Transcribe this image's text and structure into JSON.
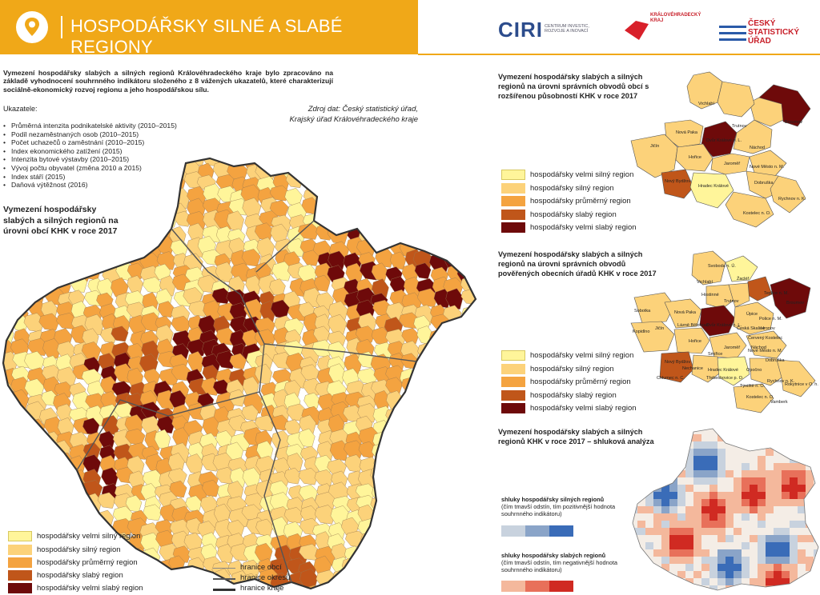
{
  "header": {
    "title": "HOSPODÁŘSKY SILNÉ A SLABÉ REGIONY",
    "ciri_name": "CIRI",
    "ciri_sub": "CENTRUM INVESTIC, ROZVOJE A INOVACÍ",
    "khk_text": "KRÁLOVÉHRADECKÝ KRAJ",
    "csu_line1": "ČESKÝ",
    "csu_line2": "STATISTICKÝ",
    "csu_line3": "ÚŘAD"
  },
  "intro": "Vymezení hospodářsky slabých a silných regionů Královéhradeckého kraje bylo zpracováno na základě vyhodnocení souhrnného indikátoru složeného z 8 vážených ukazatelů, které charakterizují sociálně-ekonomický rozvoj regionu a jeho hospodářskou sílu.",
  "indicators_title": "Ukazatele:",
  "indicators": [
    "Průměrná intenzita podnikatelské aktivity (2010–2015)",
    "Podíl nezaměstnaných osob (2010–2015)",
    "Počet uchazečů o zaměstnání (2010–2015)",
    "Index ekonomického zatížení (2015)",
    "Intenzita bytové výstavby (2010–2015)",
    "Vývoj počtu obyvatel (změna 2010 a 2015)",
    "Index stáří (2015)",
    "Daňová výtěžnost (2016)"
  ],
  "source": "Zdroj dat: Český statistický úřad, Krajský úřad Královéhradeckého kraje",
  "main_map_title": "Vymezení hospodářsky slabých a silných regionů na úrovni obcí KHK v roce 2017",
  "colors": {
    "velmi_silny": "#fff59a",
    "silny": "#fcd27a",
    "prumerny": "#f4a340",
    "slaby": "#c0561a",
    "velmi_slaby": "#6e0a0a"
  },
  "legend": [
    "hospodářsky velmi silný region",
    "hospodářsky silný region",
    "hospodářsky průměrný region",
    "hospodářsky slabý region",
    "hospodářsky velmi slabý region"
  ],
  "borders": [
    "hranice obcí",
    "hranice okresů",
    "hranice kraje"
  ],
  "orp_title": "Vymezení hospodářsky slabých a silných regionů na úrovni správních obvodů obcí s rozšířenou působností KHK v roce 2017",
  "orp_labels": [
    "Vrchlabí",
    "Broumov",
    "Trutnov",
    "Nová Paka",
    "Dvůr Králové n. L.",
    "Náchod",
    "Jičín",
    "Hořice",
    "Jaroměř",
    "Nové Město n. M.",
    "Nový Bydžov",
    "Hradec Králové",
    "Dobruška",
    "Rychnov n. K.",
    "Kostelec n. O."
  ],
  "pou_title": "Vymezení hospodářsky slabých a silných regionů na úrovni správních obvodů pověřených obecních úřadů KHK v roce 2017",
  "pou_labels": [
    "Svoboda n. Ú.",
    "Vrchlabí",
    "Žacléř",
    "Hostinné",
    "Trutnov",
    "Teplice n. M.",
    "Broumov",
    "Sobotka",
    "Nová Paka",
    "Úpice",
    "Police n. M.",
    "Lázně Bělohrad",
    "Dvůr Králové n. L.",
    "Česká Skalice",
    "Hronov",
    "Kopidlno",
    "Jičín",
    "Červený Kostelec",
    "Náchod",
    "Hořice",
    "Jaroměř",
    "Smiřice",
    "Nové Město n. M.",
    "Nový Bydžov",
    "Nechanice",
    "Hradec Králové",
    "Dobruška",
    "Opočno",
    "Chlumec n. C.",
    "Třebechovice p. O.",
    "Týniště n. O.",
    "Rychnov n. K.",
    "Rokytnice v O. h.",
    "Kostelec n. O.",
    "Vamberk"
  ],
  "cluster_title": "Vymezení hospodářsky slabých a silných regionů KHK v roce 2017 – shluková analýza",
  "cluster_strong_title": "shluky hospodářsky silných regionů",
  "cluster_strong_sub": "(čím tmavší odstín, tím pozitivnější hodnota souhrnného indikátoru)",
  "cluster_weak_title": "shluky hospodářsky slabých regionů",
  "cluster_weak_sub": "(čím tmavší odstín, tím negativnější hodnota souhrnného indikátoru)",
  "cluster_colors": {
    "strong": [
      "#c8d2de",
      "#8aa4c8",
      "#3a6cb8"
    ],
    "weak": [
      "#f4b89c",
      "#e8705a",
      "#d02a22"
    ]
  }
}
